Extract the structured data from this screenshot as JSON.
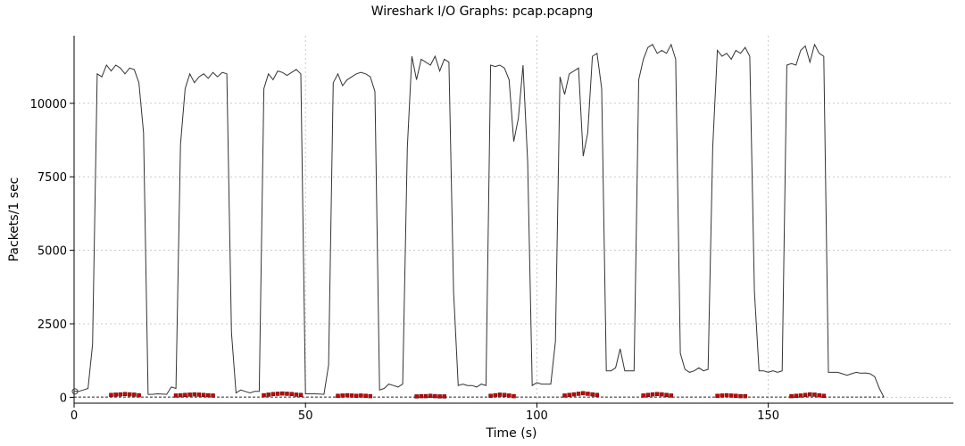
{
  "chart_data": {
    "type": "line",
    "title": "Wireshark I/O Graphs: pcap.pcapng",
    "xlabel": "Time (s)",
    "ylabel": "Packets/1 sec",
    "xlim": [
      0,
      190
    ],
    "ylim": [
      -200,
      12300
    ],
    "x_ticks": [
      0,
      50,
      100,
      150
    ],
    "y_ticks": [
      0,
      2500,
      5000,
      7500,
      10000
    ],
    "x_tick_labels": [
      "0",
      "50",
      "100",
      "150"
    ],
    "y_tick_labels": [
      "0",
      "2500",
      "5000",
      "7500",
      "10000"
    ],
    "grid": true,
    "series": [
      {
        "color": "#333333",
        "style": "line",
        "points": [
          [
            0,
            200
          ],
          [
            1,
            200
          ],
          [
            2,
            250
          ],
          [
            3,
            300
          ],
          [
            4,
            1800
          ],
          [
            5,
            11000
          ],
          [
            6,
            10900
          ],
          [
            7,
            11300
          ],
          [
            8,
            11100
          ],
          [
            9,
            11300
          ],
          [
            10,
            11200
          ],
          [
            11,
            11000
          ],
          [
            12,
            11200
          ],
          [
            13,
            11150
          ],
          [
            14,
            10700
          ],
          [
            15,
            9000
          ],
          [
            16,
            100
          ],
          [
            17,
            100
          ],
          [
            18,
            120
          ],
          [
            19,
            110
          ],
          [
            20,
            100
          ],
          [
            21,
            350
          ],
          [
            22,
            300
          ],
          [
            23,
            8600
          ],
          [
            24,
            10500
          ],
          [
            25,
            11000
          ],
          [
            26,
            10700
          ],
          [
            27,
            10900
          ],
          [
            28,
            11000
          ],
          [
            29,
            10850
          ],
          [
            30,
            11050
          ],
          [
            31,
            10900
          ],
          [
            32,
            11050
          ],
          [
            33,
            11000
          ],
          [
            34,
            2200
          ],
          [
            35,
            150
          ],
          [
            36,
            250
          ],
          [
            37,
            200
          ],
          [
            38,
            150
          ],
          [
            39,
            200
          ],
          [
            40,
            200
          ],
          [
            41,
            10500
          ],
          [
            42,
            11000
          ],
          [
            43,
            10800
          ],
          [
            44,
            11100
          ],
          [
            45,
            11050
          ],
          [
            46,
            10950
          ],
          [
            47,
            11050
          ],
          [
            48,
            11150
          ],
          [
            49,
            11000
          ],
          [
            50,
            120
          ],
          [
            51,
            120
          ],
          [
            52,
            120
          ],
          [
            53,
            110
          ],
          [
            54,
            100
          ],
          [
            55,
            1100
          ],
          [
            56,
            10700
          ],
          [
            57,
            11000
          ],
          [
            58,
            10600
          ],
          [
            59,
            10800
          ],
          [
            60,
            10900
          ],
          [
            61,
            11000
          ],
          [
            62,
            11050
          ],
          [
            63,
            11000
          ],
          [
            64,
            10900
          ],
          [
            65,
            10400
          ],
          [
            66,
            250
          ],
          [
            67,
            300
          ],
          [
            68,
            450
          ],
          [
            69,
            400
          ],
          [
            70,
            350
          ],
          [
            71,
            450
          ],
          [
            72,
            8500
          ],
          [
            73,
            11600
          ],
          [
            74,
            10800
          ],
          [
            75,
            11500
          ],
          [
            76,
            11400
          ],
          [
            77,
            11300
          ],
          [
            78,
            11600
          ],
          [
            79,
            11100
          ],
          [
            80,
            11500
          ],
          [
            81,
            11400
          ],
          [
            82,
            3600
          ],
          [
            83,
            400
          ],
          [
            84,
            450
          ],
          [
            85,
            400
          ],
          [
            86,
            400
          ],
          [
            87,
            350
          ],
          [
            88,
            450
          ],
          [
            89,
            400
          ],
          [
            90,
            11300
          ],
          [
            91,
            11250
          ],
          [
            92,
            11300
          ],
          [
            93,
            11200
          ],
          [
            94,
            10800
          ],
          [
            95,
            8700
          ],
          [
            96,
            9500
          ],
          [
            97,
            11300
          ],
          [
            98,
            8000
          ],
          [
            99,
            400
          ],
          [
            100,
            500
          ],
          [
            101,
            450
          ],
          [
            102,
            450
          ],
          [
            103,
            450
          ],
          [
            104,
            1900
          ],
          [
            105,
            10900
          ],
          [
            106,
            10300
          ],
          [
            107,
            11000
          ],
          [
            108,
            11100
          ],
          [
            109,
            11200
          ],
          [
            110,
            8200
          ],
          [
            111,
            9000
          ],
          [
            112,
            11600
          ],
          [
            113,
            11700
          ],
          [
            114,
            10500
          ],
          [
            115,
            900
          ],
          [
            116,
            900
          ],
          [
            117,
            1000
          ],
          [
            118,
            1650
          ],
          [
            119,
            900
          ],
          [
            120,
            900
          ],
          [
            121,
            900
          ],
          [
            122,
            10800
          ],
          [
            123,
            11500
          ],
          [
            124,
            11900
          ],
          [
            125,
            12000
          ],
          [
            126,
            11700
          ],
          [
            127,
            11800
          ],
          [
            128,
            11700
          ],
          [
            129,
            12000
          ],
          [
            130,
            11500
          ],
          [
            131,
            1500
          ],
          [
            132,
            950
          ],
          [
            133,
            850
          ],
          [
            134,
            900
          ],
          [
            135,
            1000
          ],
          [
            136,
            900
          ],
          [
            137,
            950
          ],
          [
            138,
            8500
          ],
          [
            139,
            11800
          ],
          [
            140,
            11600
          ],
          [
            141,
            11700
          ],
          [
            142,
            11500
          ],
          [
            143,
            11800
          ],
          [
            144,
            11700
          ],
          [
            145,
            11900
          ],
          [
            146,
            11600
          ],
          [
            147,
            3600
          ],
          [
            148,
            900
          ],
          [
            149,
            900
          ],
          [
            150,
            850
          ],
          [
            151,
            900
          ],
          [
            152,
            850
          ],
          [
            153,
            900
          ],
          [
            154,
            11300
          ],
          [
            155,
            11350
          ],
          [
            156,
            11300
          ],
          [
            157,
            11800
          ],
          [
            158,
            11950
          ],
          [
            159,
            11400
          ],
          [
            160,
            12000
          ],
          [
            161,
            11700
          ],
          [
            162,
            11600
          ],
          [
            163,
            850
          ],
          [
            164,
            850
          ],
          [
            165,
            850
          ],
          [
            166,
            800
          ],
          [
            167,
            750
          ],
          [
            168,
            800
          ],
          [
            169,
            850
          ],
          [
            170,
            820
          ],
          [
            171,
            830
          ],
          [
            172,
            800
          ],
          [
            173,
            700
          ],
          [
            174,
            300
          ],
          [
            175,
            0
          ]
        ]
      },
      {
        "color": "#333333",
        "style": "dashed",
        "points": [
          [
            0,
            10
          ],
          [
            175,
            10
          ]
        ]
      },
      {
        "color": "#cc0000",
        "style": "markers",
        "points": [
          [
            8,
            80
          ],
          [
            9,
            90
          ],
          [
            10,
            100
          ],
          [
            11,
            110
          ],
          [
            12,
            100
          ],
          [
            13,
            90
          ],
          [
            14,
            70
          ],
          [
            22,
            60
          ],
          [
            23,
            70
          ],
          [
            24,
            80
          ],
          [
            25,
            90
          ],
          [
            26,
            100
          ],
          [
            27,
            90
          ],
          [
            28,
            80
          ],
          [
            29,
            70
          ],
          [
            30,
            60
          ],
          [
            41,
            70
          ],
          [
            42,
            90
          ],
          [
            43,
            110
          ],
          [
            44,
            120
          ],
          [
            45,
            130
          ],
          [
            46,
            120
          ],
          [
            47,
            110
          ],
          [
            48,
            90
          ],
          [
            49,
            80
          ],
          [
            57,
            50
          ],
          [
            58,
            60
          ],
          [
            59,
            70
          ],
          [
            60,
            60
          ],
          [
            61,
            50
          ],
          [
            62,
            60
          ],
          [
            63,
            50
          ],
          [
            64,
            40
          ],
          [
            74,
            30
          ],
          [
            75,
            40
          ],
          [
            76,
            40
          ],
          [
            77,
            50
          ],
          [
            78,
            40
          ],
          [
            79,
            30
          ],
          [
            80,
            30
          ],
          [
            90,
            50
          ],
          [
            91,
            70
          ],
          [
            92,
            90
          ],
          [
            93,
            80
          ],
          [
            94,
            60
          ],
          [
            95,
            40
          ],
          [
            106,
            60
          ],
          [
            107,
            80
          ],
          [
            108,
            100
          ],
          [
            109,
            120
          ],
          [
            110,
            140
          ],
          [
            111,
            120
          ],
          [
            112,
            100
          ],
          [
            113,
            80
          ],
          [
            123,
            60
          ],
          [
            124,
            80
          ],
          [
            125,
            100
          ],
          [
            126,
            110
          ],
          [
            127,
            100
          ],
          [
            128,
            80
          ],
          [
            129,
            60
          ],
          [
            139,
            50
          ],
          [
            140,
            60
          ],
          [
            141,
            70
          ],
          [
            142,
            60
          ],
          [
            143,
            50
          ],
          [
            144,
            40
          ],
          [
            145,
            40
          ],
          [
            155,
            40
          ],
          [
            156,
            50
          ],
          [
            157,
            60
          ],
          [
            158,
            80
          ],
          [
            159,
            100
          ],
          [
            160,
            90
          ],
          [
            161,
            70
          ],
          [
            162,
            50
          ]
        ]
      }
    ]
  }
}
